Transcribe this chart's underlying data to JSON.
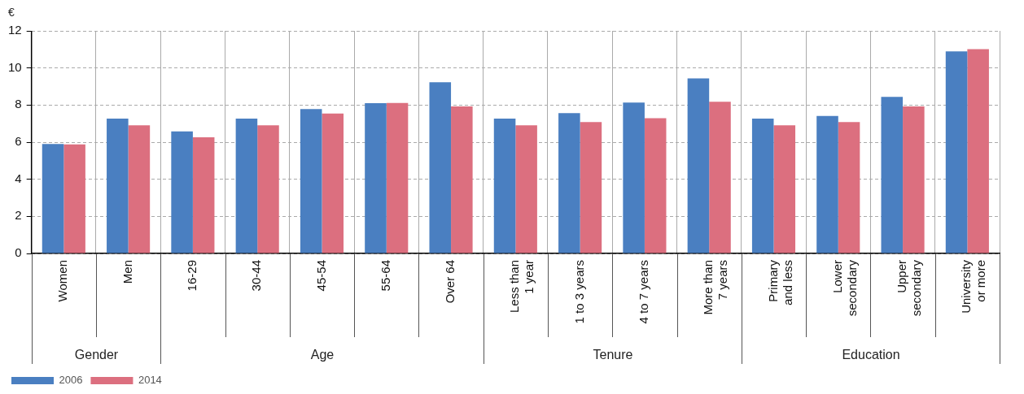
{
  "chart_data": {
    "type": "bar",
    "ylabel": "€",
    "categories": [
      "Women",
      "Men",
      "16-29",
      "30-44",
      "45-54",
      "55-64",
      "Over 64",
      "Less than\n1 year",
      "1 to 3 years",
      "4 to 7 years",
      "More than\n7 years",
      "Primary\nand less",
      "Lower\nsecondary",
      "Upper\nsecondary",
      "University\nor more"
    ],
    "series": [
      {
        "name": "2006",
        "color": "#4a7fc1",
        "values": [
          5.9,
          7.27,
          6.58,
          7.27,
          7.78,
          8.1,
          9.23,
          7.27,
          7.57,
          8.13,
          9.44,
          7.27,
          7.41,
          8.44,
          10.89
        ]
      },
      {
        "name": "2014",
        "color": "#dc6f7f",
        "values": [
          5.88,
          6.91,
          6.26,
          6.91,
          7.54,
          8.11,
          7.93,
          6.91,
          7.08,
          7.29,
          8.18,
          6.91,
          7.08,
          7.93,
          11.02
        ]
      }
    ],
    "ylim": [
      0,
      12
    ],
    "yticks": [
      0,
      2,
      4,
      6,
      8,
      10,
      12
    ],
    "grid": true,
    "legend": "bottom left",
    "annotations": [
      "Gender",
      "Age",
      "Tenure",
      "Education"
    ]
  }
}
